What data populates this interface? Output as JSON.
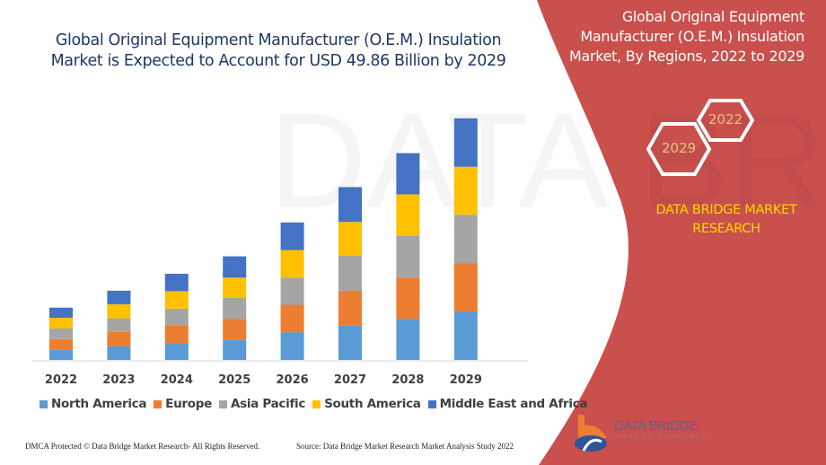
{
  "title": "Global Original Equipment Manufacturer (O.E.M.) Insulation Market is Expected to Account for USD 49.86 Billion by 2029",
  "side_panel": {
    "title": "Global Original Equipment Manufacturer (O.E.M.) Insulation Market, By Regions, 2022 to 2029",
    "hex_years": [
      "2022",
      "2029"
    ],
    "brand": "DATA BRIDGE MARKET RESEARCH",
    "panel_color": "#c9504c",
    "logo_text": "DATA BRIDGE",
    "logo_subtext": "MARKET RESEARCH"
  },
  "footer": {
    "left": "DMCA Protected © Data Bridge Market Research- All Rights Reserved.",
    "source": "Source: Data Bridge Market Research Market Analysis Study 2022"
  },
  "chart_data": {
    "type": "bar",
    "stacked": true,
    "categories": [
      "2022",
      "2023",
      "2024",
      "2025",
      "2026",
      "2027",
      "2028",
      "2029"
    ],
    "series": [
      {
        "name": "North America",
        "color": "#5b9bd5",
        "values": [
          2.1,
          2.8,
          3.5,
          4.2,
          5.7,
          7.1,
          8.5,
          10.0
        ]
      },
      {
        "name": "Europe",
        "color": "#ed7d31",
        "values": [
          2.2,
          3.0,
          3.7,
          4.3,
          5.7,
          7.2,
          8.5,
          10.0
        ]
      },
      {
        "name": "Asia Pacific",
        "color": "#a5a5a5",
        "values": [
          2.2,
          2.8,
          3.4,
          4.3,
          5.6,
          7.2,
          8.7,
          10.0
        ]
      },
      {
        "name": "South America",
        "color": "#ffc000",
        "values": [
          2.2,
          2.9,
          3.6,
          4.2,
          5.7,
          7.0,
          8.5,
          9.9
        ]
      },
      {
        "name": "Middle East and Africa",
        "color": "#4472c4",
        "values": [
          2.1,
          2.8,
          3.6,
          4.4,
          5.7,
          7.2,
          8.5,
          10.0
        ]
      }
    ],
    "ylim": [
      0,
      50
    ],
    "grid": false,
    "y_axis_visible": false,
    "legend": "bottom"
  }
}
